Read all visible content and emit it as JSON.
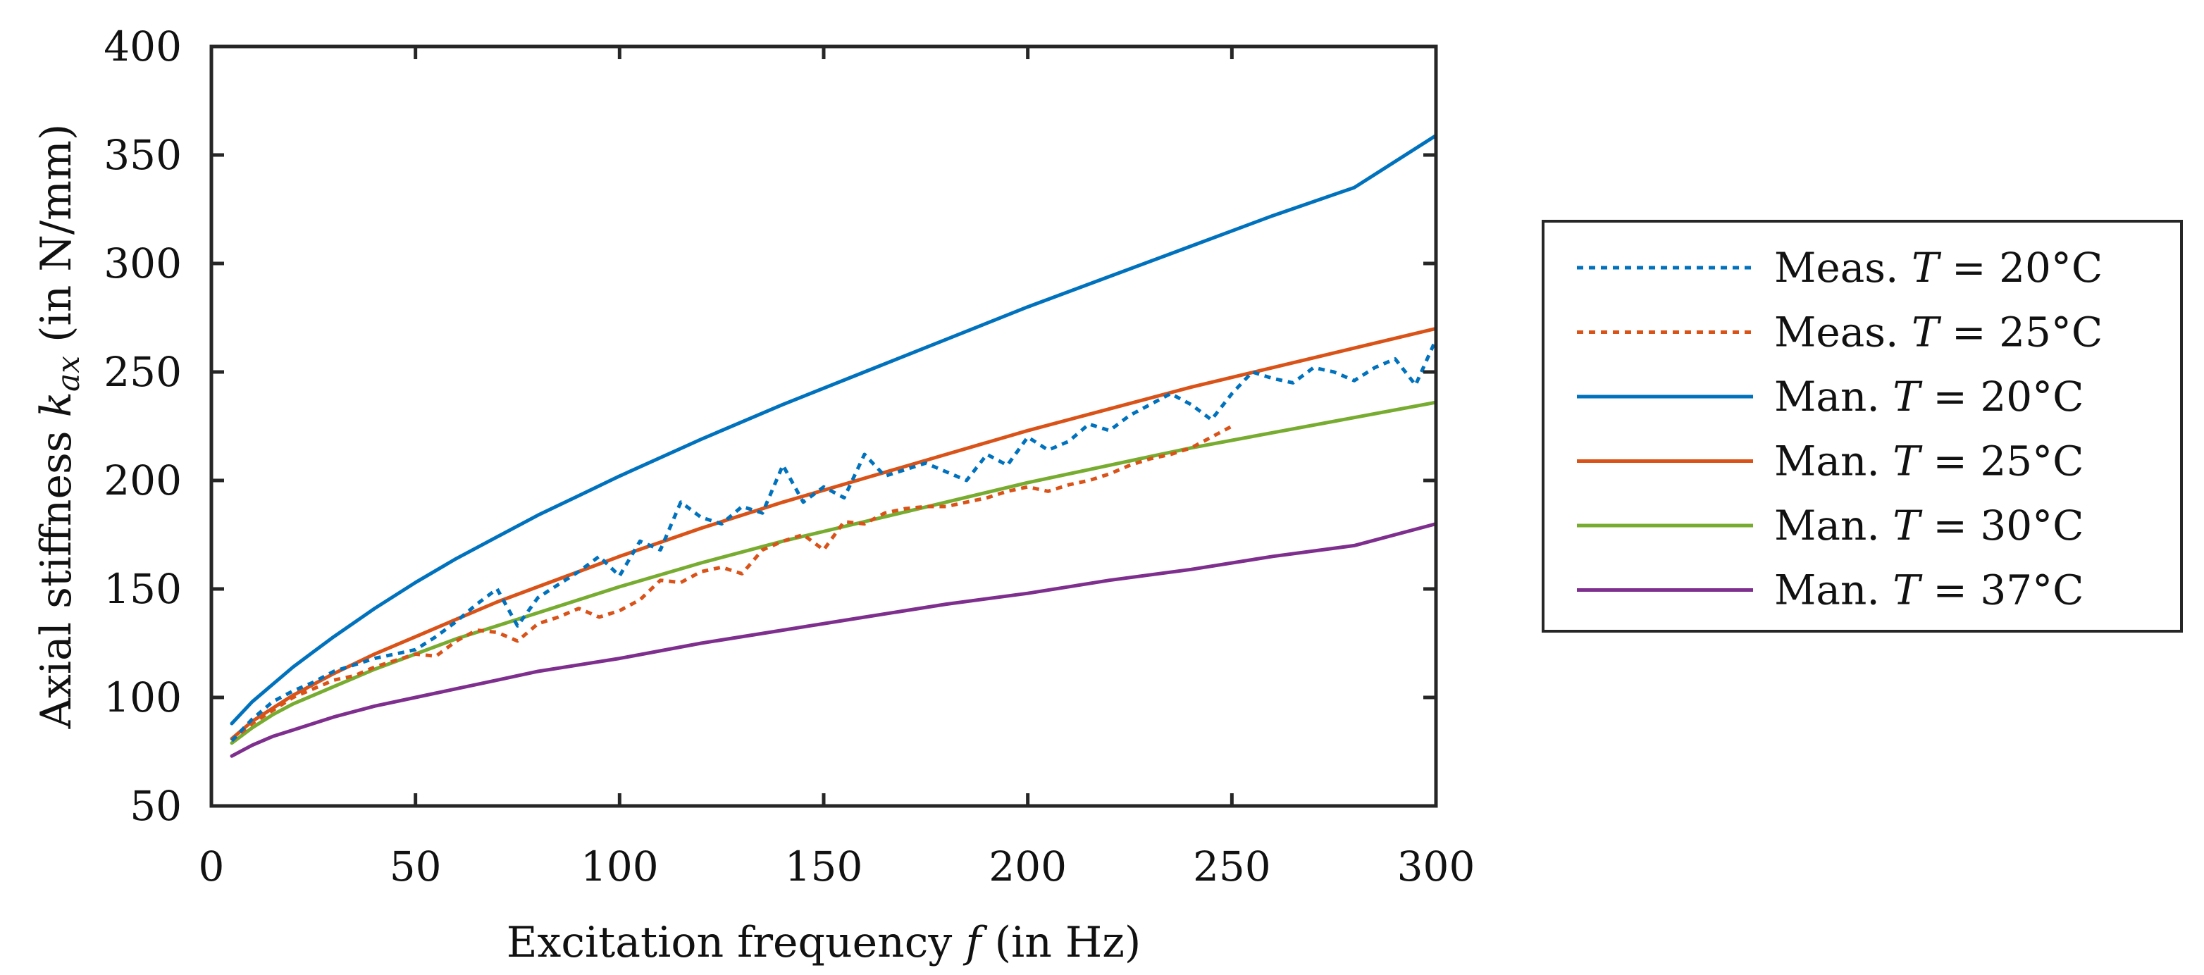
{
  "chart_data": {
    "type": "line",
    "xlabel": {
      "text": "Excitation frequency ",
      "var": "f",
      "unit": " (in Hz)"
    },
    "ylabel": {
      "text": "Axial stiffness ",
      "var": "k",
      "sub": "ax",
      "unit": "  (in N/mm)"
    },
    "xlim": [
      0,
      300
    ],
    "ylim": [
      50,
      400
    ],
    "xticks": [
      0,
      50,
      100,
      150,
      200,
      250,
      300
    ],
    "yticks": [
      50,
      100,
      150,
      200,
      250,
      300,
      350,
      400
    ],
    "grid": false,
    "legend_position": "right-outside",
    "series": [
      {
        "name": "Meas. T = 20°C",
        "label_prefix": "Meas. ",
        "label_var": "T",
        "label_suffix": " = 20°C",
        "color": "#0072BD",
        "style": "dotted",
        "x": [
          5,
          10,
          15,
          20,
          25,
          30,
          35,
          40,
          45,
          50,
          55,
          60,
          65,
          70,
          75,
          80,
          85,
          90,
          95,
          100,
          105,
          110,
          115,
          120,
          125,
          130,
          135,
          140,
          145,
          150,
          155,
          160,
          165,
          170,
          175,
          180,
          185,
          190,
          195,
          200,
          205,
          210,
          215,
          220,
          225,
          230,
          235,
          240,
          245,
          250,
          255,
          260,
          265,
          270,
          275,
          280,
          285,
          290,
          295,
          300
        ],
        "y": [
          80,
          90,
          98,
          103,
          107,
          112,
          115,
          118,
          120,
          122,
          128,
          135,
          143,
          150,
          133,
          146,
          152,
          158,
          165,
          156,
          172,
          168,
          190,
          183,
          180,
          188,
          185,
          207,
          190,
          197,
          192,
          212,
          202,
          205,
          208,
          204,
          200,
          212,
          207,
          220,
          214,
          218,
          226,
          223,
          230,
          235,
          240,
          235,
          228,
          240,
          250,
          247,
          245,
          252,
          250,
          246,
          252,
          256,
          244,
          265
        ]
      },
      {
        "name": "Meas. T = 25°C",
        "label_prefix": "Meas. ",
        "label_var": "T",
        "label_suffix": " = 25°C",
        "color": "#D95319",
        "style": "dotted",
        "x": [
          5,
          10,
          15,
          20,
          25,
          30,
          35,
          40,
          45,
          50,
          55,
          60,
          65,
          70,
          75,
          80,
          85,
          90,
          95,
          100,
          105,
          110,
          115,
          120,
          125,
          130,
          135,
          140,
          145,
          150,
          155,
          160,
          165,
          170,
          175,
          180,
          185,
          190,
          195,
          200,
          205,
          210,
          215,
          220,
          225,
          230,
          235,
          240,
          245,
          250
        ],
        "y": [
          80,
          88,
          94,
          100,
          104,
          108,
          110,
          114,
          117,
          120,
          119,
          126,
          131,
          130,
          126,
          134,
          137,
          141,
          137,
          140,
          145,
          154,
          153,
          158,
          160,
          157,
          168,
          172,
          175,
          168,
          181,
          180,
          185,
          187,
          188,
          188,
          190,
          192,
          195,
          197,
          195,
          198,
          200,
          203,
          207,
          210,
          212,
          215,
          220,
          225
        ]
      },
      {
        "name": "Man. T = 20°C",
        "label_prefix": "Man. ",
        "label_var": "T",
        "label_suffix": " = 20°C",
        "color": "#0072BD",
        "style": "solid",
        "x": [
          5,
          10,
          15,
          20,
          25,
          30,
          40,
          50,
          60,
          70,
          80,
          90,
          100,
          120,
          140,
          160,
          180,
          200,
          220,
          240,
          260,
          280,
          300
        ],
        "y": [
          88,
          98,
          106,
          114,
          121,
          128,
          141,
          153,
          164,
          174,
          184,
          193,
          202,
          219,
          235,
          250,
          265,
          280,
          294,
          308,
          322,
          335,
          359
        ]
      },
      {
        "name": "Man. T = 25°C",
        "label_prefix": "Man. ",
        "label_var": "T",
        "label_suffix": " = 25°C",
        "color": "#D95319",
        "style": "solid",
        "x": [
          5,
          10,
          15,
          20,
          25,
          30,
          40,
          50,
          60,
          70,
          80,
          90,
          100,
          120,
          140,
          160,
          180,
          200,
          220,
          240,
          260,
          280,
          300
        ],
        "y": [
          81,
          89,
          95,
          101,
          106,
          111,
          120,
          128,
          136,
          144,
          151,
          158,
          165,
          178,
          190,
          201,
          212,
          223,
          233,
          243,
          252,
          261,
          270
        ]
      },
      {
        "name": "Man. T = 30°C",
        "label_prefix": "Man. ",
        "label_var": "T",
        "label_suffix": " = 30°C",
        "color": "#77AC30",
        "style": "solid",
        "x": [
          5,
          10,
          15,
          20,
          25,
          30,
          40,
          50,
          60,
          70,
          80,
          90,
          100,
          120,
          140,
          160,
          180,
          200,
          220,
          240,
          260,
          280,
          300
        ],
        "y": [
          79,
          86,
          92,
          97,
          101,
          105,
          113,
          120,
          127,
          133,
          139,
          145,
          151,
          162,
          172,
          181,
          190,
          199,
          207,
          215,
          222,
          229,
          236
        ]
      },
      {
        "name": "Man. T = 37°C",
        "label_prefix": "Man. ",
        "label_var": "T",
        "label_suffix": " = 37°C",
        "color": "#7E2F8E",
        "style": "solid",
        "x": [
          5,
          10,
          15,
          20,
          25,
          30,
          40,
          50,
          60,
          70,
          80,
          90,
          100,
          120,
          140,
          160,
          180,
          200,
          220,
          240,
          260,
          280,
          300
        ],
        "y": [
          73,
          78,
          82,
          85,
          88,
          91,
          96,
          100,
          104,
          108,
          112,
          115,
          118,
          125,
          131,
          137,
          143,
          148,
          154,
          159,
          165,
          170,
          180
        ]
      }
    ]
  }
}
